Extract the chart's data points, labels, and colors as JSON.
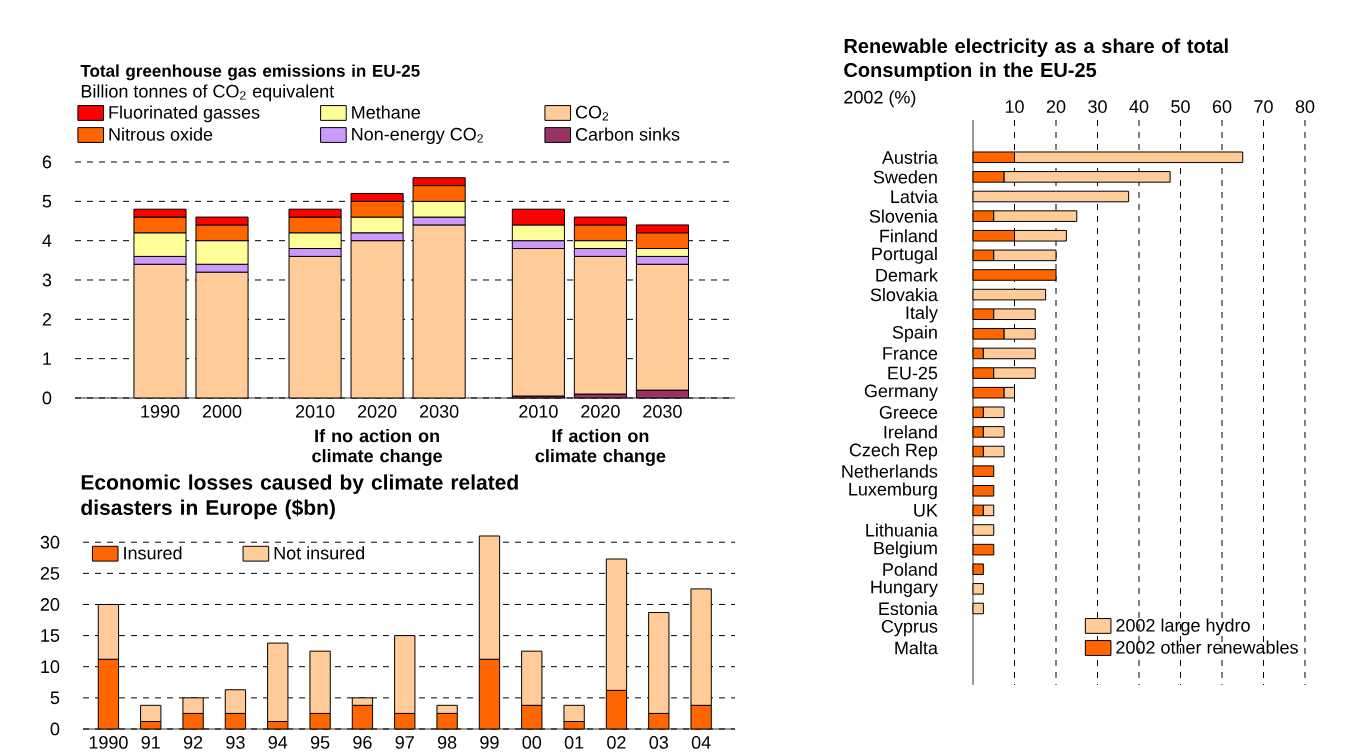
{
  "chart_data": [
    {
      "type": "bar",
      "title": "Total greenhouse gas emissions in EU-25",
      "subtitle": "Billion tonnes of CO$_{2}$ equivalent",
      "stacked": true,
      "categories": [
        "1990",
        "2000",
        "2010",
        "2020",
        "2030",
        "2010",
        "2020",
        "2030"
      ],
      "series": [
        {
          "name": "Carbon sinks",
          "color": "#993366",
          "values": [
            null,
            null,
            null,
            null,
            null,
            0.05,
            0.1,
            0.2
          ]
        },
        {
          "name": "CO$_{2}$",
          "color": "#ffcc99",
          "values": [
            3.4,
            3.2,
            3.6,
            4.0,
            4.4,
            3.75,
            3.5,
            3.2
          ]
        },
        {
          "name": "Non-energy CO$_{2}$",
          "color": "#cc99ff",
          "values": [
            0.2,
            0.2,
            0.2,
            0.2,
            0.2,
            0.2,
            0.2,
            0.2
          ]
        },
        {
          "name": "Methane",
          "color": "#ffff99",
          "values": [
            0.6,
            0.6,
            0.4,
            0.4,
            0.4,
            0.4,
            0.2,
            0.2
          ]
        },
        {
          "name": "Nitrous oxide",
          "color": "#ff6600",
          "values": [
            0.4,
            0.4,
            0.4,
            0.4,
            0.4,
            null,
            0.4,
            0.4
          ]
        },
        {
          "name": "Fluorinated gasses",
          "color": "#ff0000",
          "values": [
            0.2,
            0.2,
            0.2,
            0.2,
            0.2,
            0.4,
            0.2,
            0.2
          ]
        }
      ],
      "ylim": [
        0,
        6
      ],
      "yticks": [
        0,
        1,
        2,
        3,
        4,
        5,
        6
      ],
      "grid": "y",
      "legend": "top",
      "annotations": [
        "If no action on climate change",
        "If action on climate change"
      ]
    },
    {
      "type": "bar",
      "title": "Economic losses caused by climate related disasters in Europe ($bn)",
      "stacked": true,
      "categories": [
        "1990",
        "91",
        "92",
        "93",
        "94",
        "95",
        "96",
        "97",
        "98",
        "99",
        "00",
        "01",
        "02",
        "03",
        "04"
      ],
      "series": [
        {
          "name": "Insured",
          "color": "#ff6600",
          "values": [
            11.2,
            1.2,
            2.5,
            2.5,
            1.2,
            2.5,
            3.8,
            2.5,
            2.5,
            11.2,
            3.8,
            1.2,
            6.2,
            2.5,
            3.8
          ]
        },
        {
          "name": "Not insured",
          "color": "#ffcc99",
          "values": [
            8.8,
            2.6,
            2.5,
            3.8,
            12.6,
            10,
            1.2,
            12.5,
            1.3,
            19.8,
            8.7,
            2.6,
            21.1,
            16.2,
            18.7
          ]
        }
      ],
      "ylim": [
        0,
        31
      ],
      "yticks": [
        0,
        5,
        10,
        15,
        20,
        25,
        30
      ],
      "grid": "y",
      "legend": "top left"
    },
    {
      "type": "bar",
      "title": "Renewable electricity as a share of total Consumption in the EU-25",
      "subtitle": "2002 (%)",
      "stacked": true,
      "orientation": "horizontal",
      "categories": [
        "Austria",
        "Sweden",
        "Latvia",
        "Slovenia",
        "Finland",
        "Portugal",
        "Demark",
        "Slovakia",
        "Italy",
        "Spain",
        "France",
        "EU-25",
        "Germany",
        "Greece",
        "Ireland",
        "Czech Rep",
        "Netherlands",
        "Luxemburg",
        "UK",
        "Lithuania",
        "Belgium",
        "Poland",
        "Hungary",
        "Estonia",
        "Cyprus",
        "Malta"
      ],
      "series": [
        {
          "name": "2002 other renewables",
          "color": "#ff6600",
          "values": [
            10,
            7.5,
            null,
            5,
            10,
            5,
            20,
            null,
            5,
            7.5,
            2.5,
            5,
            7.5,
            2.5,
            2.5,
            2.5,
            5,
            5,
            2.5,
            null,
            5,
            2.5,
            null,
            null,
            null,
            null
          ]
        },
        {
          "name": "2002 large hydro",
          "color": "#ffcc99",
          "values": [
            55,
            40,
            37.5,
            20,
            12.5,
            15,
            null,
            17.5,
            10,
            7.5,
            12.5,
            10,
            2.5,
            5,
            5,
            5,
            null,
            null,
            2.5,
            5,
            null,
            null,
            2.5,
            2.5,
            null,
            null
          ]
        }
      ],
      "xlim": [
        0,
        80
      ],
      "xticks": [
        10,
        20,
        30,
        40,
        50,
        60,
        70,
        80
      ],
      "grid": "x",
      "legend": "bottom right"
    }
  ]
}
